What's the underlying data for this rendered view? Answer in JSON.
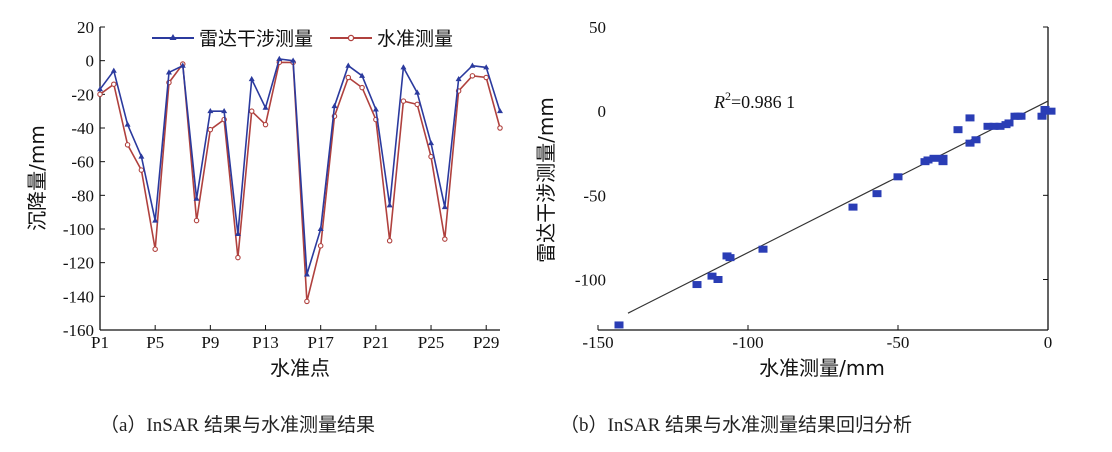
{
  "chart_data": [
    {
      "type": "line",
      "panel": "a",
      "caption": "（a）InSAR 结果与水准测量结果",
      "xlabel": "水准点",
      "ylabel": "沉降量/mm",
      "ylim": [
        -160,
        20
      ],
      "yticks": [
        20,
        0,
        -20,
        -40,
        -60,
        -80,
        -100,
        -120,
        -140,
        -160
      ],
      "categories": [
        "P1",
        "P2",
        "P3",
        "P4",
        "P5",
        "P6",
        "P7",
        "P8",
        "P9",
        "P10",
        "P11",
        "P12",
        "P13",
        "P14",
        "P15",
        "P16",
        "P17",
        "P18",
        "P19",
        "P20",
        "P21",
        "P22",
        "P23",
        "P24",
        "P25",
        "P26",
        "P27",
        "P28",
        "P29",
        "P30"
      ],
      "xtick_labels": [
        "P1",
        "P5",
        "P9",
        "P13",
        "P17",
        "P21",
        "P25",
        "P29"
      ],
      "grid": false,
      "legend_position": "top",
      "series": [
        {
          "name": "雷达干涉测量",
          "color": "#2b3a9e",
          "marker": "triangle",
          "values": [
            -17,
            -6,
            -38,
            -57,
            -95,
            -7,
            -3,
            -82,
            -30,
            -30,
            -103,
            -11,
            -28,
            1,
            0,
            -127,
            -100,
            -27,
            -3,
            -9,
            -29,
            -86,
            -4,
            -19,
            -49,
            -87,
            -11,
            -3,
            -4,
            -30
          ]
        },
        {
          "name": "水准测量",
          "color": "#b0413e",
          "marker": "circle",
          "values": [
            -20,
            -14,
            -50,
            -65,
            -112,
            -13,
            -2,
            -95,
            -41,
            -35,
            -117,
            -30,
            -38,
            -1,
            -1,
            -143,
            -110,
            -33,
            -10,
            -16,
            -35,
            -107,
            -24,
            -26,
            -57,
            -106,
            -18,
            -9,
            -10,
            -40
          ]
        }
      ]
    },
    {
      "type": "scatter",
      "panel": "b",
      "caption": "（b）InSAR 结果与水准测量结果回归分析",
      "xlabel": "水准测量/mm",
      "ylabel": "雷达干涉测量/mm",
      "xlim": [
        -150,
        0
      ],
      "ylim": [
        -130,
        50
      ],
      "xticks": [
        -150,
        -100,
        -50,
        0
      ],
      "yticks": [
        50,
        0,
        -50,
        -100
      ],
      "annotation": {
        "r2_label": "R",
        "r2_sup": "2",
        "r2_value": "=0.986 1"
      },
      "marker_color": "#2a3db5",
      "fit_line": {
        "from": [
          -140,
          -120
        ],
        "to": [
          0,
          6
        ]
      },
      "points": [
        [
          -143,
          -127
        ],
        [
          -117,
          -103
        ],
        [
          -112,
          -98
        ],
        [
          -110,
          -100
        ],
        [
          -107,
          -86
        ],
        [
          -106,
          -87
        ],
        [
          -95,
          -82
        ],
        [
          -65,
          -57
        ],
        [
          -57,
          -49
        ],
        [
          -50,
          -39
        ],
        [
          -41,
          -30
        ],
        [
          -40,
          -29
        ],
        [
          -38,
          -28
        ],
        [
          -35,
          -30
        ],
        [
          -35,
          -28
        ],
        [
          -30,
          -11
        ],
        [
          -26,
          -4
        ],
        [
          -26,
          -19
        ],
        [
          -24,
          -17
        ],
        [
          -20,
          -9
        ],
        [
          -18,
          -9
        ],
        [
          -16,
          -9
        ],
        [
          -14,
          -8
        ],
        [
          -13,
          -7
        ],
        [
          -11,
          -3
        ],
        [
          -10,
          -3
        ],
        [
          -9,
          -3
        ],
        [
          -2,
          -3
        ],
        [
          -1,
          1
        ],
        [
          1,
          0
        ]
      ]
    }
  ]
}
